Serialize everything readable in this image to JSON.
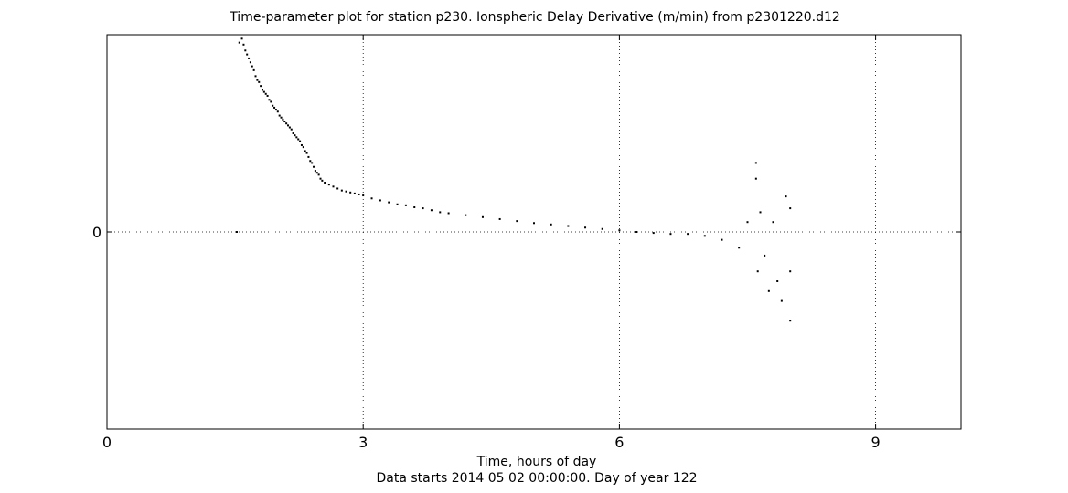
{
  "chart_data": {
    "type": "scatter",
    "title": "Time-parameter plot for station p230.   Ionspheric Delay Derivative (m/min) from p2301220.d12",
    "xlabel": "Time, hours of day",
    "xlabel2": "Data starts 2014 05 02 00:00:00.  Day of year 122",
    "ylabel": "",
    "xlim": [
      0,
      10
    ],
    "ylim": [
      -1.0,
      1.0
    ],
    "x_ticks": [
      0,
      3,
      6,
      9
    ],
    "x_tick_labels": [
      "0",
      "3",
      "6",
      "9"
    ],
    "y_ticks": [
      0
    ],
    "y_tick_labels": [
      "0"
    ],
    "grid": true,
    "legend": "none",
    "marker_color": "#000000",
    "series": [
      {
        "points": [
          [
            1.52,
            0.0
          ],
          [
            1.55,
            0.96
          ],
          [
            1.58,
            0.98
          ],
          [
            1.6,
            0.95
          ],
          [
            1.62,
            0.92
          ],
          [
            1.64,
            0.9
          ],
          [
            1.66,
            0.88
          ],
          [
            1.68,
            0.86
          ],
          [
            1.7,
            0.84
          ],
          [
            1.72,
            0.82
          ],
          [
            1.74,
            0.79
          ],
          [
            1.76,
            0.77
          ],
          [
            1.78,
            0.76
          ],
          [
            1.8,
            0.74
          ],
          [
            1.82,
            0.72
          ],
          [
            1.84,
            0.71
          ],
          [
            1.86,
            0.7
          ],
          [
            1.88,
            0.69
          ],
          [
            1.9,
            0.67
          ],
          [
            1.92,
            0.66
          ],
          [
            1.94,
            0.64
          ],
          [
            1.96,
            0.63
          ],
          [
            1.98,
            0.62
          ],
          [
            2.0,
            0.61
          ],
          [
            2.02,
            0.59
          ],
          [
            2.04,
            0.58
          ],
          [
            2.06,
            0.57
          ],
          [
            2.08,
            0.56
          ],
          [
            2.1,
            0.55
          ],
          [
            2.12,
            0.54
          ],
          [
            2.14,
            0.53
          ],
          [
            2.16,
            0.52
          ],
          [
            2.18,
            0.5
          ],
          [
            2.2,
            0.49
          ],
          [
            2.22,
            0.48
          ],
          [
            2.24,
            0.47
          ],
          [
            2.26,
            0.46
          ],
          [
            2.28,
            0.44
          ],
          [
            2.3,
            0.43
          ],
          [
            2.32,
            0.41
          ],
          [
            2.34,
            0.4
          ],
          [
            2.36,
            0.38
          ],
          [
            2.38,
            0.36
          ],
          [
            2.4,
            0.35
          ],
          [
            2.42,
            0.33
          ],
          [
            2.44,
            0.31
          ],
          [
            2.46,
            0.3
          ],
          [
            2.48,
            0.29
          ],
          [
            2.5,
            0.27
          ],
          [
            2.52,
            0.26
          ],
          [
            2.55,
            0.25
          ],
          [
            2.6,
            0.24
          ],
          [
            2.65,
            0.23
          ],
          [
            2.7,
            0.22
          ],
          [
            2.75,
            0.21
          ],
          [
            2.8,
            0.205
          ],
          [
            2.85,
            0.2
          ],
          [
            2.9,
            0.195
          ],
          [
            2.95,
            0.19
          ],
          [
            3.0,
            0.185
          ],
          [
            3.1,
            0.17
          ],
          [
            3.2,
            0.16
          ],
          [
            3.3,
            0.15
          ],
          [
            3.4,
            0.14
          ],
          [
            3.5,
            0.135
          ],
          [
            3.6,
            0.125
          ],
          [
            3.7,
            0.12
          ],
          [
            3.8,
            0.11
          ],
          [
            3.9,
            0.1
          ],
          [
            4.0,
            0.095
          ],
          [
            4.2,
            0.085
          ],
          [
            4.4,
            0.075
          ],
          [
            4.6,
            0.065
          ],
          [
            4.8,
            0.055
          ],
          [
            5.0,
            0.045
          ],
          [
            5.2,
            0.038
          ],
          [
            5.4,
            0.03
          ],
          [
            5.6,
            0.022
          ],
          [
            5.8,
            0.015
          ],
          [
            6.0,
            0.008
          ],
          [
            6.2,
            0.0
          ],
          [
            6.4,
            -0.005
          ],
          [
            6.6,
            -0.01
          ],
          [
            6.8,
            -0.01
          ],
          [
            7.0,
            -0.02
          ],
          [
            7.2,
            -0.04
          ],
          [
            7.4,
            -0.08
          ],
          [
            7.5,
            0.05
          ],
          [
            7.6,
            0.35
          ],
          [
            7.6,
            0.27
          ],
          [
            7.62,
            -0.2
          ],
          [
            7.65,
            0.1
          ],
          [
            7.7,
            -0.12
          ],
          [
            7.75,
            -0.3
          ],
          [
            7.8,
            0.05
          ],
          [
            7.85,
            -0.25
          ],
          [
            7.9,
            -0.35
          ],
          [
            7.95,
            0.18
          ],
          [
            8.0,
            -0.45
          ],
          [
            8.0,
            0.12
          ],
          [
            8.0,
            -0.2
          ]
        ]
      }
    ]
  }
}
